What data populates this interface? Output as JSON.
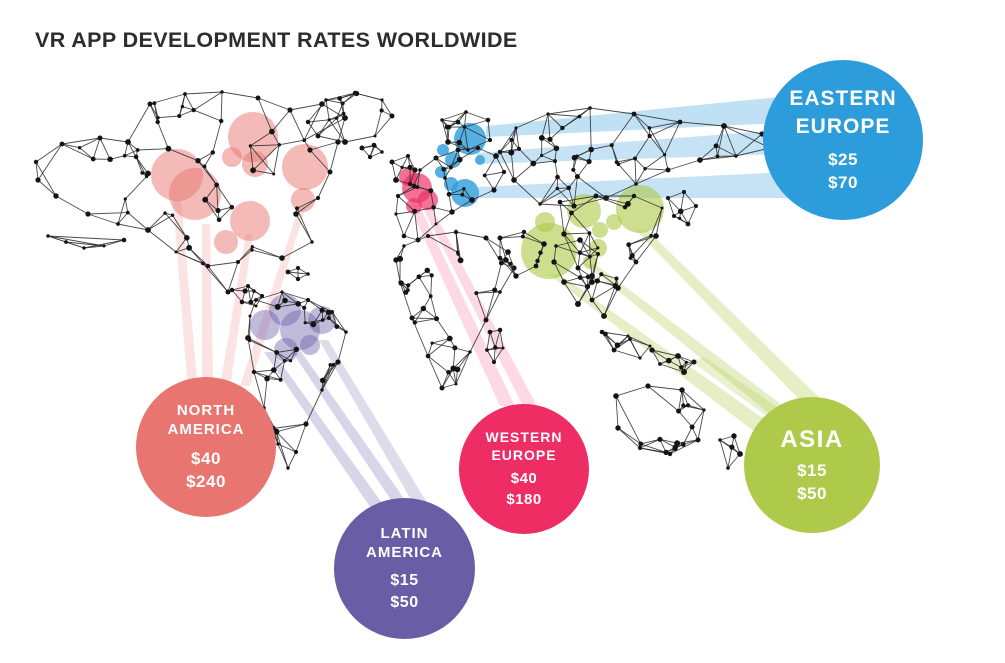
{
  "title": "VR APP DEVELOPMENT RATES WORLDWIDE",
  "chart_data": {
    "type": "bubble-map",
    "title": "VR APP DEVELOPMENT RATES WORLDWIDE",
    "regions": [
      {
        "id": "eastern-europe",
        "name": "EASTERN EUROPE",
        "rate_low": "$25",
        "rate_high": "$70",
        "color": "#2d9cdb"
      },
      {
        "id": "north-america",
        "name": "NORTH AMERICA",
        "rate_low": "$40",
        "rate_high": "$240",
        "color": "#e8756f"
      },
      {
        "id": "western-europe",
        "name": "WESTERN EUROPE",
        "rate_low": "$40",
        "rate_high": "$180",
        "color": "#ee2d64"
      },
      {
        "id": "latin-america",
        "name": "LATIN AMERICA",
        "rate_low": "$15",
        "rate_high": "$50",
        "color": "#695da6"
      },
      {
        "id": "asia",
        "name": "ASIA",
        "rate_low": "$15",
        "rate_high": "$50",
        "color": "#afca4b"
      }
    ],
    "map_style": {
      "mesh_line_color": "#2a2a2a",
      "mesh_dot_color": "#141414",
      "background": "#ffffff"
    }
  }
}
